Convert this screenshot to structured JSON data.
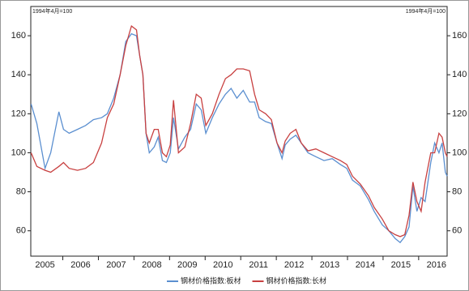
{
  "chart_data": {
    "type": "line",
    "left_axis_note": "1994年4月=100",
    "right_axis_note": "1994年4月=100",
    "x": [
      2005.11,
      2005.27,
      2005.5,
      2005.66,
      2005.89,
      2006.02,
      2006.18,
      2006.41,
      2006.64,
      2006.86,
      2007.09,
      2007.25,
      2007.43,
      2007.61,
      2007.77,
      2007.93,
      2008.07,
      2008.16,
      2008.25,
      2008.34,
      2008.43,
      2008.57,
      2008.68,
      2008.8,
      2008.91,
      2009.02,
      2009.11,
      2009.25,
      2009.43,
      2009.59,
      2009.75,
      2009.89,
      2010.02,
      2010.2,
      2010.39,
      2010.57,
      2010.73,
      2010.89,
      2011.07,
      2011.25,
      2011.39,
      2011.52,
      2011.7,
      2011.86,
      2012.02,
      2012.16,
      2012.25,
      2012.39,
      2012.55,
      2012.7,
      2012.89,
      2013.11,
      2013.34,
      2013.57,
      2013.8,
      2013.98,
      2014.14,
      2014.36,
      2014.59,
      2014.75,
      2014.98,
      2015.16,
      2015.34,
      2015.48,
      2015.61,
      2015.73,
      2015.84,
      2015.95,
      2016.07,
      2016.18,
      2016.34,
      2016.45,
      2016.57,
      2016.66,
      2016.75,
      2016.8
    ],
    "series": [
      {
        "name": "钢材价格指数:板材",
        "color": "#5b8fd0",
        "values": [
          125,
          115,
          92,
          100,
          121,
          112,
          110,
          112,
          114,
          117,
          118,
          120,
          128,
          140,
          157,
          161,
          160,
          150,
          140,
          110,
          100,
          103,
          108,
          96,
          95,
          100,
          118,
          102,
          108,
          112,
          125,
          122,
          110,
          118,
          125,
          130,
          133,
          128,
          132,
          126,
          126,
          118,
          116,
          115,
          105,
          97,
          104,
          107,
          109,
          105,
          100,
          98,
          96,
          97,
          94,
          92,
          86,
          83,
          76,
          70,
          63,
          60,
          56,
          54,
          57,
          62,
          83,
          70,
          77,
          75,
          95,
          105,
          100,
          105,
          90,
          88
        ]
      },
      {
        "name": "钢材价格指数:长材",
        "color": "#c84040",
        "values": [
          100,
          93,
          91,
          90,
          93,
          95,
          92,
          91,
          92,
          95,
          105,
          118,
          125,
          140,
          155,
          165,
          163,
          150,
          140,
          110,
          105,
          112,
          112,
          100,
          98,
          104,
          127,
          100,
          103,
          115,
          130,
          128,
          114,
          120,
          130,
          138,
          140,
          143,
          143,
          142,
          130,
          122,
          120,
          117,
          105,
          100,
          106,
          110,
          112,
          105,
          101,
          102,
          100,
          98,
          96,
          94,
          88,
          84,
          78,
          72,
          66,
          60,
          58,
          57,
          58,
          68,
          85,
          75,
          70,
          85,
          100,
          100,
          110,
          108,
          100,
          98
        ]
      }
    ],
    "xlim": [
      2005.1,
      2016.8
    ],
    "xticks": [
      2005,
      2006,
      2007,
      2008,
      2009,
      2010,
      2011,
      2012,
      2013,
      2014,
      2015,
      2016
    ],
    "ylim": [
      47,
      175
    ],
    "yticks": [
      60,
      80,
      100,
      120,
      140,
      160
    ],
    "grid": false
  }
}
